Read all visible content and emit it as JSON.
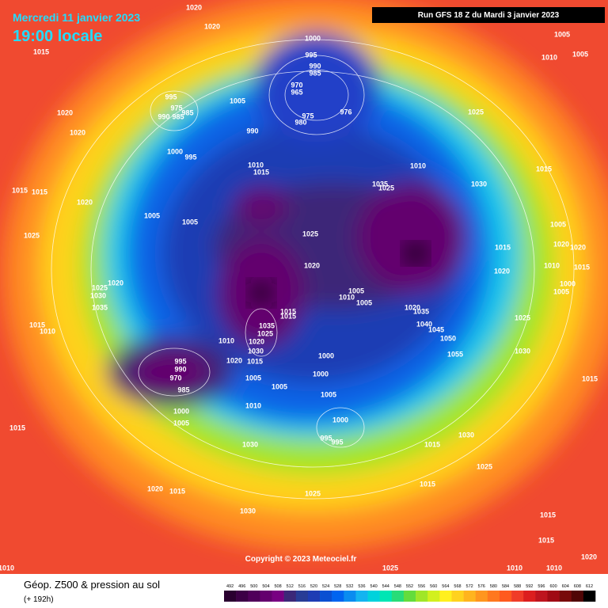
{
  "header": {
    "date": "Mercredi 11 janvier 2023",
    "time": "19:00 locale",
    "run": "Run GFS 18 Z du Mardi 3 janvier 2023"
  },
  "footer": {
    "title": "Géop. Z500 & pression au sol",
    "subtitle": "(+ 192h)",
    "copyright": "Copyright © 2023 Meteociel.fr"
  },
  "map": {
    "pressure_labels": [
      "1020",
      "1020",
      "1015",
      "1000",
      "995",
      "990",
      "985",
      "970",
      "965",
      "975",
      "980",
      "976",
      "1005",
      "1010",
      "1005",
      "995",
      "975",
      "985",
      "990",
      "985",
      "1005",
      "1020",
      "1020",
      "990",
      "1000",
      "995",
      "1025",
      "1010",
      "1015",
      "1010",
      "1015",
      "1030",
      "1035",
      "1025",
      "1015",
      "1015",
      "1020",
      "1005",
      "1005",
      "1025",
      "1005",
      "1025",
      "1015",
      "1020",
      "1020",
      "1010",
      "1015",
      "1020",
      "1020",
      "1000",
      "1005",
      "1025",
      "1020",
      "1030",
      "1005",
      "1010",
      "1005",
      "1035",
      "1020",
      "1035",
      "1015",
      "1015",
      "1025",
      "1040",
      "1045",
      "1015",
      "1010",
      "1035",
      "1025",
      "1010",
      "1050",
      "1020",
      "1030",
      "1030",
      "1000",
      "1055",
      "995",
      "1020",
      "1015",
      "990",
      "970",
      "1000",
      "1005",
      "1015",
      "1005",
      "985",
      "1005",
      "1010",
      "1000",
      "1000",
      "1005",
      "1015",
      "995",
      "995",
      "1030",
      "1030",
      "1015",
      "1025",
      "1015",
      "1020",
      "1015",
      "1025",
      "1030",
      "1015",
      "1015",
      "1010",
      "1025",
      "1010",
      "1010",
      "1020"
    ]
  },
  "legend": {
    "values": [
      492,
      496,
      500,
      504,
      508,
      512,
      516,
      520,
      524,
      528,
      532,
      536,
      540,
      544,
      548,
      552,
      556,
      560,
      564,
      568,
      572,
      576,
      580,
      584,
      588,
      592,
      596,
      600,
      604,
      608,
      612
    ],
    "colors": [
      "#2a0030",
      "#3c0046",
      "#50005a",
      "#64006e",
      "#780082",
      "#3c2878",
      "#283c96",
      "#1e3cb4",
      "#0a50d2",
      "#0064f0",
      "#0a8cf0",
      "#14b4f0",
      "#00d2dc",
      "#00e6b4",
      "#28dc78",
      "#64dc3c",
      "#a0e628",
      "#d2f01e",
      "#fff01e",
      "#ffd21e",
      "#ffb41e",
      "#ff961e",
      "#ff781e",
      "#ff5a1e",
      "#f03c28",
      "#dc1e1e",
      "#be141e",
      "#a00a14",
      "#780a0a",
      "#500505",
      "#000000"
    ]
  }
}
